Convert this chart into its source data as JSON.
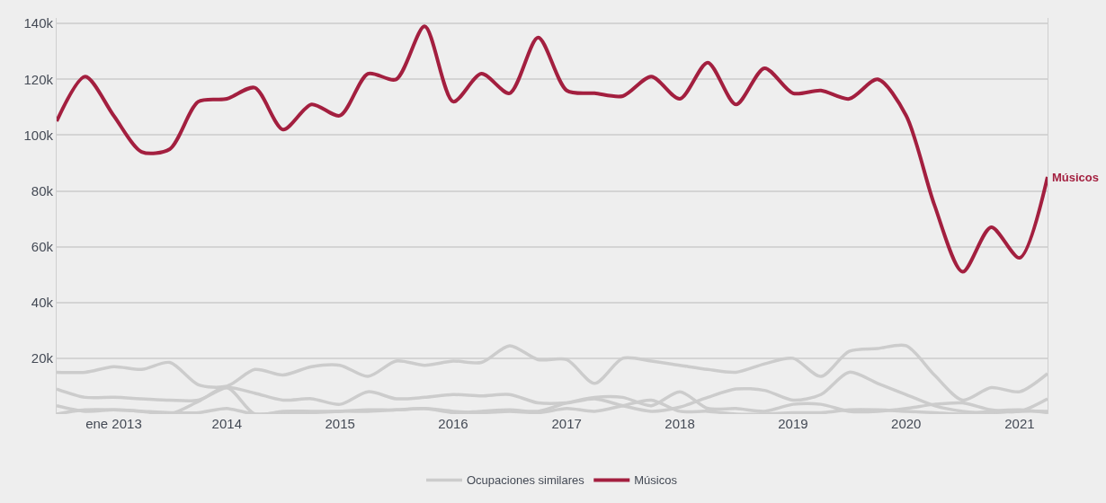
{
  "chart_data": {
    "type": "line",
    "x": [
      "2012-07",
      "2012-10",
      "2013-01",
      "2013-04",
      "2013-07",
      "2013-10",
      "2014-01",
      "2014-04",
      "2014-07",
      "2014-10",
      "2015-01",
      "2015-04",
      "2015-07",
      "2015-10",
      "2016-01",
      "2016-04",
      "2016-07",
      "2016-10",
      "2017-01",
      "2017-04",
      "2017-07",
      "2017-10",
      "2018-01",
      "2018-04",
      "2018-07",
      "2018-10",
      "2019-01",
      "2019-04",
      "2019-07",
      "2019-10",
      "2020-01",
      "2020-04",
      "2020-07",
      "2020-10",
      "2021-01",
      "2021-04"
    ],
    "series": [
      {
        "name": "Ocupaciones similares",
        "color": "#cccccc",
        "values": [
          15000,
          15000,
          17000,
          16000,
          18500,
          10500,
          10000,
          16000,
          14000,
          17000,
          17500,
          13500,
          19000,
          17500,
          19000,
          18500,
          24500,
          19500,
          19500,
          11000,
          20000,
          19000,
          17500,
          16000,
          15000,
          18000,
          20000,
          13500,
          22500,
          23500,
          24500,
          14000,
          5000,
          9500,
          8000,
          14500
        ]
      },
      {
        "color": "#cccccc",
        "values": [
          9000,
          6000,
          6000,
          5500,
          5000,
          5000,
          9500,
          7500,
          5000,
          5500,
          3500,
          8000,
          5500,
          6000,
          7000,
          6500,
          7000,
          4000,
          4000,
          5500,
          3000,
          1000,
          2500,
          6000,
          9000,
          8500,
          5000,
          7000,
          15000,
          11000,
          7000,
          3000,
          1000,
          500,
          1000,
          1000
        ]
      },
      {
        "color": "#cccccc",
        "values": [
          3000,
          1000,
          1500,
          1000,
          500,
          500,
          2000,
          0,
          500,
          500,
          1000,
          1000,
          1500,
          2000,
          500,
          1000,
          1500,
          1000,
          4000,
          6000,
          6000,
          3000,
          8000,
          2000,
          2000,
          1000,
          3500,
          3500,
          1000,
          1000,
          2000,
          3500,
          4000,
          1500,
          1000,
          5500
        ]
      },
      {
        "color": "#cccccc",
        "values": [
          0,
          1500,
          1500,
          1000,
          0,
          4500,
          9500,
          0,
          1000,
          1000,
          1000,
          1500,
          1500,
          2000,
          1000,
          500,
          1000,
          500,
          2000,
          1000,
          3000,
          5000,
          1000,
          1000,
          0,
          0,
          500,
          500,
          1500,
          1500,
          1000,
          500,
          0,
          1000,
          1500,
          500
        ]
      },
      {
        "name": "Músicos",
        "color": "#a31f3f",
        "values": [
          105000,
          121000,
          107000,
          94000,
          95000,
          112000,
          113000,
          117000,
          102000,
          111000,
          107000,
          122000,
          120000,
          139000,
          112000,
          122000,
          115000,
          135000,
          116000,
          115000,
          114000,
          121000,
          113000,
          126000,
          111000,
          124000,
          115000,
          116000,
          113000,
          120000,
          107000,
          75000,
          51000,
          67000,
          56000,
          85000
        ]
      }
    ],
    "xlim": [
      "2012-07",
      "2021-04"
    ],
    "xticks": [
      {
        "value": "2013-01",
        "label": "ene 2013"
      },
      {
        "value": "2014-01",
        "label": "2014"
      },
      {
        "value": "2015-01",
        "label": "2015"
      },
      {
        "value": "2016-01",
        "label": "2016"
      },
      {
        "value": "2017-01",
        "label": "2017"
      },
      {
        "value": "2018-01",
        "label": "2018"
      },
      {
        "value": "2019-01",
        "label": "2019"
      },
      {
        "value": "2020-01",
        "label": "2020"
      },
      {
        "value": "2021-01",
        "label": "2021"
      }
    ],
    "ylim": [
      0,
      142000
    ],
    "yticks": [
      {
        "value": 20000,
        "label": "20k"
      },
      {
        "value": 40000,
        "label": "40k"
      },
      {
        "value": 60000,
        "label": "60k"
      },
      {
        "value": 80000,
        "label": "80k"
      },
      {
        "value": 100000,
        "label": "100k"
      },
      {
        "value": 120000,
        "label": "120k"
      },
      {
        "value": 140000,
        "label": "140k"
      }
    ],
    "grid": "y",
    "legend": "bottom",
    "marker": "none",
    "line_style": "solid"
  }
}
